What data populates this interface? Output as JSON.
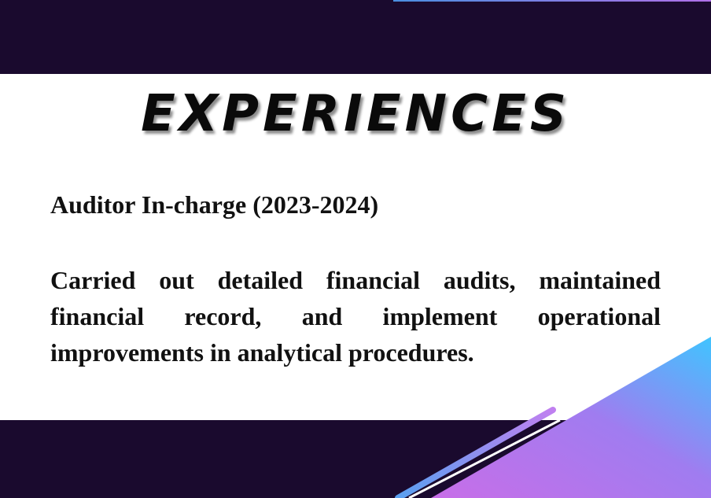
{
  "slide": {
    "title": "EXPERIENCES",
    "role": "Auditor In-charge (2023-2024)",
    "description": "Carried out detailed financial audits, maintained financial record, and implement operational improvements in analytical procedures."
  },
  "theme": {
    "dark_band": "#1a0a2e",
    "gradient_start": "#c86ee8",
    "gradient_end": "#40c4ff"
  }
}
